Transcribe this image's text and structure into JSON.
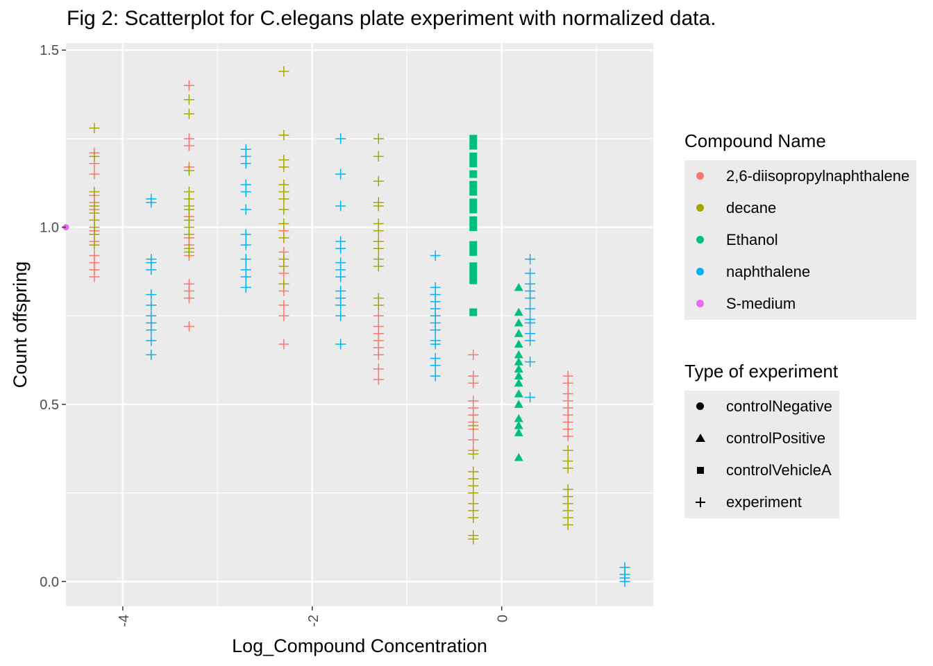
{
  "chart_data": {
    "type": "scatter",
    "title": "Fig 2: Scatterplot for C.elegans plate experiment with normalized data.",
    "xlabel": "Log_Compound Concentration",
    "ylabel": "Count offspring",
    "xlim": [
      -4.6,
      1.6
    ],
    "ylim": [
      -0.07,
      1.52
    ],
    "x_ticks": [
      -4,
      -2,
      0
    ],
    "x_tick_labels": [
      "-4",
      "-2",
      "0"
    ],
    "y_ticks": [
      0.0,
      0.5,
      1.0,
      1.5
    ],
    "y_tick_labels": [
      "0.0",
      "0.5",
      "1.0",
      "1.5"
    ],
    "grid": true,
    "legend_position": "right",
    "color_legend": {
      "title": "Compound Name",
      "entries": [
        {
          "name": "2,6-diisopropylnaphthalene",
          "color": "#F8766D"
        },
        {
          "name": "decane",
          "color": "#A3A500"
        },
        {
          "name": "Ethanol",
          "color": "#00BF7D"
        },
        {
          "name": "naphthalene",
          "color": "#00B0F6"
        },
        {
          "name": "S-medium",
          "color": "#E76BF3"
        }
      ]
    },
    "shape_legend": {
      "title": "Type of experiment",
      "entries": [
        {
          "name": "controlNegative",
          "shape": "circle"
        },
        {
          "name": "controlPositive",
          "shape": "triangle"
        },
        {
          "name": "controlVehicleA",
          "shape": "square"
        },
        {
          "name": "experiment",
          "shape": "plus"
        }
      ]
    },
    "series": [
      {
        "compound": "S-medium",
        "type": "controlNegative",
        "color": "#E76BF3",
        "shape": "circle",
        "points": [
          {
            "x": -4.6,
            "y": 1.0
          }
        ]
      },
      {
        "compound": "Ethanol",
        "type": "controlVehicleA",
        "color": "#00BF7D",
        "shape": "square",
        "points": [
          {
            "x": -0.3,
            "y": 1.25
          },
          {
            "x": -0.3,
            "y": 1.23
          },
          {
            "x": -0.3,
            "y": 1.2
          },
          {
            "x": -0.3,
            "y": 1.18
          },
          {
            "x": -0.3,
            "y": 1.15
          },
          {
            "x": -0.3,
            "y": 1.12
          },
          {
            "x": -0.3,
            "y": 1.1
          },
          {
            "x": -0.3,
            "y": 1.07
          },
          {
            "x": -0.3,
            "y": 1.05
          },
          {
            "x": -0.3,
            "y": 1.02
          },
          {
            "x": -0.3,
            "y": 1.0
          },
          {
            "x": -0.3,
            "y": 0.95
          },
          {
            "x": -0.3,
            "y": 0.93
          },
          {
            "x": -0.3,
            "y": 0.89
          },
          {
            "x": -0.3,
            "y": 0.87
          },
          {
            "x": -0.3,
            "y": 0.85
          },
          {
            "x": -0.3,
            "y": 0.76
          }
        ]
      },
      {
        "compound": "Ethanol",
        "type": "controlPositive",
        "color": "#00BF7D",
        "shape": "triangle",
        "points": [
          {
            "x": 0.18,
            "y": 0.83
          },
          {
            "x": 0.18,
            "y": 0.76
          },
          {
            "x": 0.18,
            "y": 0.73
          },
          {
            "x": 0.18,
            "y": 0.7
          },
          {
            "x": 0.18,
            "y": 0.67
          },
          {
            "x": 0.18,
            "y": 0.64
          },
          {
            "x": 0.18,
            "y": 0.62
          },
          {
            "x": 0.18,
            "y": 0.6
          },
          {
            "x": 0.18,
            "y": 0.58
          },
          {
            "x": 0.18,
            "y": 0.56
          },
          {
            "x": 0.18,
            "y": 0.53
          },
          {
            "x": 0.18,
            "y": 0.5
          },
          {
            "x": 0.18,
            "y": 0.46
          },
          {
            "x": 0.18,
            "y": 0.44
          },
          {
            "x": 0.18,
            "y": 0.42
          },
          {
            "x": 0.18,
            "y": 0.35
          }
        ]
      },
      {
        "compound": "2,6-diisopropylnaphthalene",
        "type": "experiment",
        "color": "#F8766D",
        "shape": "plus",
        "points": [
          {
            "x": -4.3,
            "y": 1.21
          },
          {
            "x": -4.3,
            "y": 1.18
          },
          {
            "x": -4.3,
            "y": 1.15
          },
          {
            "x": -4.3,
            "y": 1.09
          },
          {
            "x": -4.3,
            "y": 1.07
          },
          {
            "x": -4.3,
            "y": 1.05
          },
          {
            "x": -4.3,
            "y": 1.02
          },
          {
            "x": -4.3,
            "y": 0.99
          },
          {
            "x": -4.3,
            "y": 0.96
          },
          {
            "x": -4.3,
            "y": 0.92
          },
          {
            "x": -4.3,
            "y": 0.9
          },
          {
            "x": -4.3,
            "y": 0.88
          },
          {
            "x": -4.3,
            "y": 0.86
          },
          {
            "x": -3.3,
            "y": 1.4
          },
          {
            "x": -3.3,
            "y": 1.25
          },
          {
            "x": -3.3,
            "y": 1.23
          },
          {
            "x": -3.3,
            "y": 1.17
          },
          {
            "x": -3.3,
            "y": 1.03
          },
          {
            "x": -3.3,
            "y": 0.97
          },
          {
            "x": -3.3,
            "y": 0.95
          },
          {
            "x": -3.3,
            "y": 0.92
          },
          {
            "x": -3.3,
            "y": 0.84
          },
          {
            "x": -3.3,
            "y": 0.82
          },
          {
            "x": -3.3,
            "y": 0.8
          },
          {
            "x": -3.3,
            "y": 0.72
          },
          {
            "x": -2.3,
            "y": 0.99
          },
          {
            "x": -2.3,
            "y": 0.93
          },
          {
            "x": -2.3,
            "y": 0.87
          },
          {
            "x": -2.3,
            "y": 0.82
          },
          {
            "x": -2.3,
            "y": 0.78
          },
          {
            "x": -2.3,
            "y": 0.75
          },
          {
            "x": -2.3,
            "y": 0.67
          },
          {
            "x": -1.3,
            "y": 0.75
          },
          {
            "x": -1.3,
            "y": 0.72
          },
          {
            "x": -1.3,
            "y": 0.7
          },
          {
            "x": -1.3,
            "y": 0.68
          },
          {
            "x": -1.3,
            "y": 0.66
          },
          {
            "x": -1.3,
            "y": 0.64
          },
          {
            "x": -1.3,
            "y": 0.6
          },
          {
            "x": -1.3,
            "y": 0.57
          },
          {
            "x": -0.3,
            "y": 0.64
          },
          {
            "x": -0.3,
            "y": 0.58
          },
          {
            "x": -0.3,
            "y": 0.56
          },
          {
            "x": -0.3,
            "y": 0.51
          },
          {
            "x": -0.3,
            "y": 0.49
          },
          {
            "x": -0.3,
            "y": 0.47
          },
          {
            "x": -0.3,
            "y": 0.45
          },
          {
            "x": -0.3,
            "y": 0.43
          },
          {
            "x": -0.3,
            "y": 0.4
          },
          {
            "x": -0.3,
            "y": 0.37
          },
          {
            "x": 0.7,
            "y": 0.58
          },
          {
            "x": 0.7,
            "y": 0.56
          },
          {
            "x": 0.7,
            "y": 0.53
          },
          {
            "x": 0.7,
            "y": 0.51
          },
          {
            "x": 0.7,
            "y": 0.49
          },
          {
            "x": 0.7,
            "y": 0.47
          },
          {
            "x": 0.7,
            "y": 0.45
          },
          {
            "x": 0.7,
            "y": 0.43
          },
          {
            "x": 0.7,
            "y": 0.41
          }
        ]
      },
      {
        "compound": "decane",
        "type": "experiment",
        "color": "#A3A500",
        "shape": "plus",
        "points": [
          {
            "x": -4.3,
            "y": 1.28
          },
          {
            "x": -4.3,
            "y": 1.2
          },
          {
            "x": -4.3,
            "y": 1.1
          },
          {
            "x": -4.3,
            "y": 1.06
          },
          {
            "x": -4.3,
            "y": 1.04
          },
          {
            "x": -4.3,
            "y": 1.02
          },
          {
            "x": -4.3,
            "y": 1.0
          },
          {
            "x": -4.3,
            "y": 0.98
          },
          {
            "x": -4.3,
            "y": 0.95
          },
          {
            "x": -3.3,
            "y": 1.36
          },
          {
            "x": -3.3,
            "y": 1.32
          },
          {
            "x": -3.3,
            "y": 1.16
          },
          {
            "x": -3.3,
            "y": 1.1
          },
          {
            "x": -3.3,
            "y": 1.08
          },
          {
            "x": -3.3,
            "y": 1.06
          },
          {
            "x": -3.3,
            "y": 1.05
          },
          {
            "x": -3.3,
            "y": 1.02
          },
          {
            "x": -3.3,
            "y": 1.0
          },
          {
            "x": -3.3,
            "y": 0.98
          },
          {
            "x": -3.3,
            "y": 0.94
          },
          {
            "x": -3.3,
            "y": 0.93
          },
          {
            "x": -2.3,
            "y": 1.44
          },
          {
            "x": -2.3,
            "y": 1.26
          },
          {
            "x": -2.3,
            "y": 1.19
          },
          {
            "x": -2.3,
            "y": 1.17
          },
          {
            "x": -2.3,
            "y": 1.12
          },
          {
            "x": -2.3,
            "y": 1.1
          },
          {
            "x": -2.3,
            "y": 1.08
          },
          {
            "x": -2.3,
            "y": 1.05
          },
          {
            "x": -2.3,
            "y": 1.01
          },
          {
            "x": -2.3,
            "y": 0.97
          },
          {
            "x": -2.3,
            "y": 0.91
          },
          {
            "x": -2.3,
            "y": 0.89
          },
          {
            "x": -2.3,
            "y": 0.84
          },
          {
            "x": -1.3,
            "y": 1.25
          },
          {
            "x": -1.3,
            "y": 1.2
          },
          {
            "x": -1.3,
            "y": 1.13
          },
          {
            "x": -1.3,
            "y": 1.07
          },
          {
            "x": -1.3,
            "y": 1.06
          },
          {
            "x": -1.3,
            "y": 1.01
          },
          {
            "x": -1.3,
            "y": 0.99
          },
          {
            "x": -1.3,
            "y": 0.96
          },
          {
            "x": -1.3,
            "y": 0.94
          },
          {
            "x": -1.3,
            "y": 0.91
          },
          {
            "x": -1.3,
            "y": 0.89
          },
          {
            "x": -1.3,
            "y": 0.8
          },
          {
            "x": -1.3,
            "y": 0.78
          },
          {
            "x": -0.3,
            "y": 0.44
          },
          {
            "x": -0.3,
            "y": 0.36
          },
          {
            "x": -0.3,
            "y": 0.31
          },
          {
            "x": -0.3,
            "y": 0.29
          },
          {
            "x": -0.3,
            "y": 0.27
          },
          {
            "x": -0.3,
            "y": 0.25
          },
          {
            "x": -0.3,
            "y": 0.22
          },
          {
            "x": -0.3,
            "y": 0.2
          },
          {
            "x": -0.3,
            "y": 0.18
          },
          {
            "x": -0.3,
            "y": 0.13
          },
          {
            "x": -0.3,
            "y": 0.12
          },
          {
            "x": 0.7,
            "y": 0.37
          },
          {
            "x": 0.7,
            "y": 0.34
          },
          {
            "x": 0.7,
            "y": 0.32
          },
          {
            "x": 0.7,
            "y": 0.26
          },
          {
            "x": 0.7,
            "y": 0.24
          },
          {
            "x": 0.7,
            "y": 0.22
          },
          {
            "x": 0.7,
            "y": 0.2
          },
          {
            "x": 0.7,
            "y": 0.18
          },
          {
            "x": 0.7,
            "y": 0.16
          }
        ]
      },
      {
        "compound": "naphthalene",
        "type": "experiment",
        "color": "#00B0F6",
        "shape": "plus",
        "points": [
          {
            "x": -3.7,
            "y": 1.08
          },
          {
            "x": -3.7,
            "y": 1.07
          },
          {
            "x": -3.7,
            "y": 0.91
          },
          {
            "x": -3.7,
            "y": 0.9
          },
          {
            "x": -3.7,
            "y": 0.88
          },
          {
            "x": -3.7,
            "y": 0.81
          },
          {
            "x": -3.7,
            "y": 0.78
          },
          {
            "x": -3.7,
            "y": 0.75
          },
          {
            "x": -3.7,
            "y": 0.73
          },
          {
            "x": -3.7,
            "y": 0.71
          },
          {
            "x": -3.7,
            "y": 0.68
          },
          {
            "x": -3.7,
            "y": 0.64
          },
          {
            "x": -2.7,
            "y": 1.22
          },
          {
            "x": -2.7,
            "y": 1.2
          },
          {
            "x": -2.7,
            "y": 1.18
          },
          {
            "x": -2.7,
            "y": 1.12
          },
          {
            "x": -2.7,
            "y": 1.1
          },
          {
            "x": -2.7,
            "y": 1.05
          },
          {
            "x": -2.7,
            "y": 0.98
          },
          {
            "x": -2.7,
            "y": 0.95
          },
          {
            "x": -2.7,
            "y": 0.91
          },
          {
            "x": -2.7,
            "y": 0.88
          },
          {
            "x": -2.7,
            "y": 0.86
          },
          {
            "x": -2.7,
            "y": 0.83
          },
          {
            "x": -1.7,
            "y": 1.25
          },
          {
            "x": -1.7,
            "y": 1.15
          },
          {
            "x": -1.7,
            "y": 1.06
          },
          {
            "x": -1.7,
            "y": 0.96
          },
          {
            "x": -1.7,
            "y": 0.94
          },
          {
            "x": -1.7,
            "y": 0.9
          },
          {
            "x": -1.7,
            "y": 0.88
          },
          {
            "x": -1.7,
            "y": 0.86
          },
          {
            "x": -1.7,
            "y": 0.82
          },
          {
            "x": -1.7,
            "y": 0.8
          },
          {
            "x": -1.7,
            "y": 0.78
          },
          {
            "x": -1.7,
            "y": 0.75
          },
          {
            "x": -1.7,
            "y": 0.67
          },
          {
            "x": -0.7,
            "y": 0.92
          },
          {
            "x": -0.7,
            "y": 0.83
          },
          {
            "x": -0.7,
            "y": 0.81
          },
          {
            "x": -0.7,
            "y": 0.79
          },
          {
            "x": -0.7,
            "y": 0.77
          },
          {
            "x": -0.7,
            "y": 0.75
          },
          {
            "x": -0.7,
            "y": 0.73
          },
          {
            "x": -0.7,
            "y": 0.71
          },
          {
            "x": -0.7,
            "y": 0.68
          },
          {
            "x": -0.7,
            "y": 0.67
          },
          {
            "x": -0.7,
            "y": 0.63
          },
          {
            "x": -0.7,
            "y": 0.61
          },
          {
            "x": -0.7,
            "y": 0.58
          },
          {
            "x": 0.3,
            "y": 0.91
          },
          {
            "x": 0.3,
            "y": 0.87
          },
          {
            "x": 0.3,
            "y": 0.84
          },
          {
            "x": 0.3,
            "y": 0.82
          },
          {
            "x": 0.3,
            "y": 0.8
          },
          {
            "x": 0.3,
            "y": 0.77
          },
          {
            "x": 0.3,
            "y": 0.74
          },
          {
            "x": 0.3,
            "y": 0.73
          },
          {
            "x": 0.3,
            "y": 0.7
          },
          {
            "x": 0.3,
            "y": 0.68
          },
          {
            "x": 0.3,
            "y": 0.62
          },
          {
            "x": 0.3,
            "y": 0.52
          },
          {
            "x": 1.3,
            "y": 0.04
          },
          {
            "x": 1.3,
            "y": 0.02
          },
          {
            "x": 1.3,
            "y": 0.01
          },
          {
            "x": 1.3,
            "y": 0.0
          }
        ]
      }
    ]
  }
}
